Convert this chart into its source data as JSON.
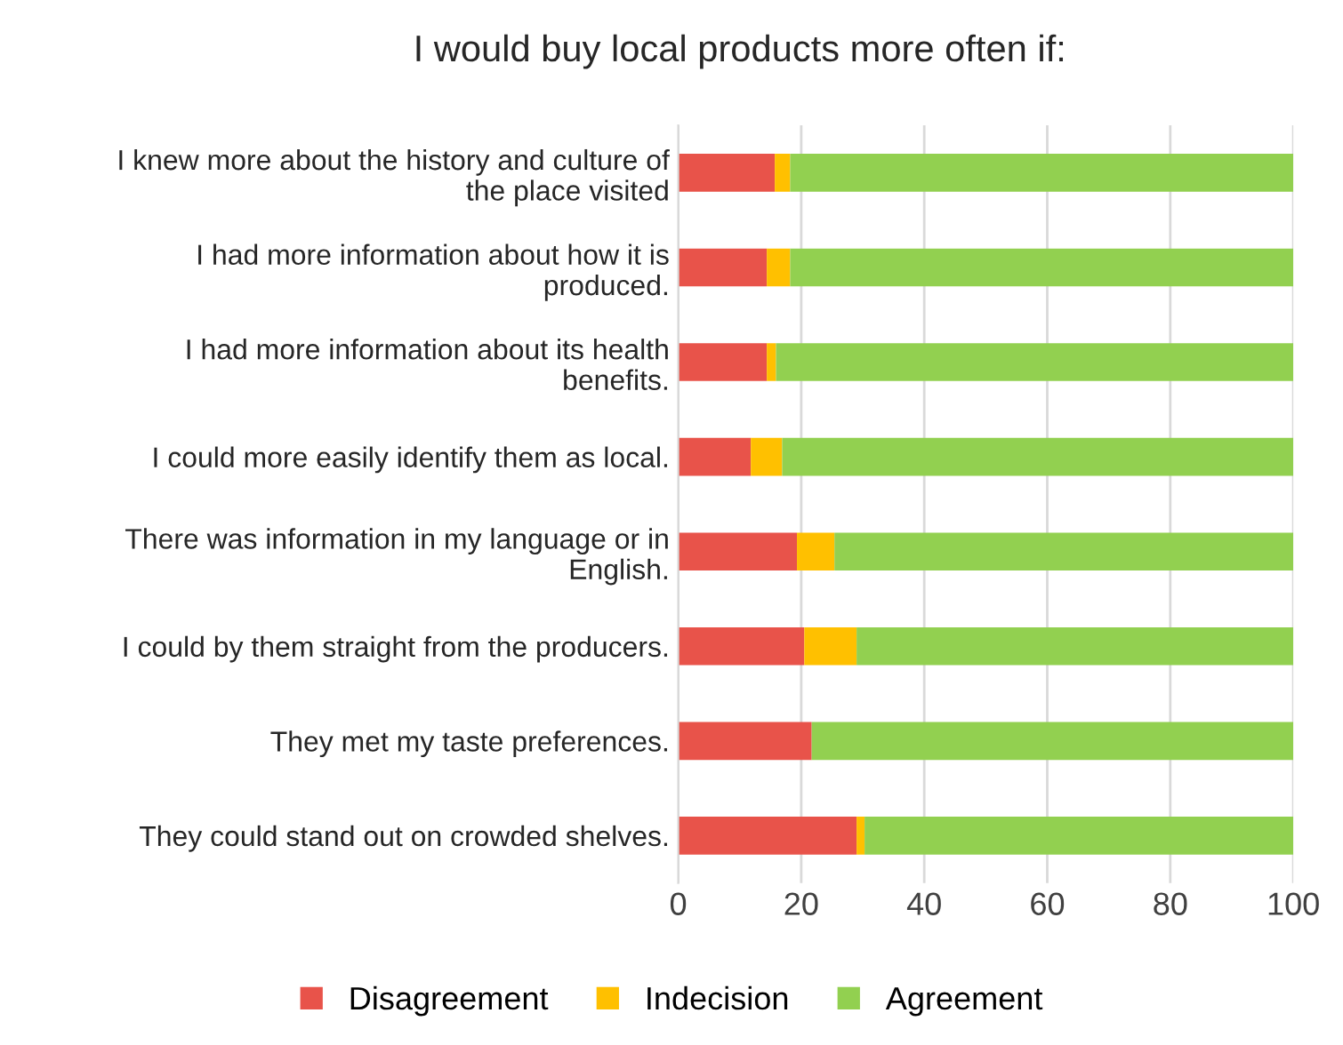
{
  "chart_data": {
    "type": "bar",
    "orientation": "horizontal",
    "stacked": true,
    "title": "I would buy local products more often if:",
    "categories": [
      "I knew more about the history and culture of the place visited",
      "I had more information about how it is produced.",
      "I had more information about its health benefits.",
      "I could more easily identify them as local.",
      "There was information in my language or in English.",
      "I could by them straight from the producers.",
      "They met my taste preferences.",
      "They could stand out on crowded shelves."
    ],
    "series": [
      {
        "name": "Disagreement",
        "color": "#e8534a",
        "values": [
          15.7,
          14.4,
          14.4,
          11.8,
          19.3,
          20.5,
          21.7,
          29.0
        ]
      },
      {
        "name": "Indecision",
        "color": "#ffc000",
        "values": [
          2.5,
          3.8,
          1.5,
          5.1,
          6.1,
          8.5,
          0,
          1.3
        ]
      },
      {
        "name": "Agreement",
        "color": "#92d050",
        "values": [
          81.8,
          81.8,
          84.1,
          83.1,
          74.6,
          71.0,
          78.3,
          69.7
        ]
      }
    ],
    "xlim": [
      0,
      100
    ],
    "xticks": [
      0,
      20,
      40,
      60,
      80,
      100
    ],
    "grid": "x",
    "legend": "bottom"
  }
}
